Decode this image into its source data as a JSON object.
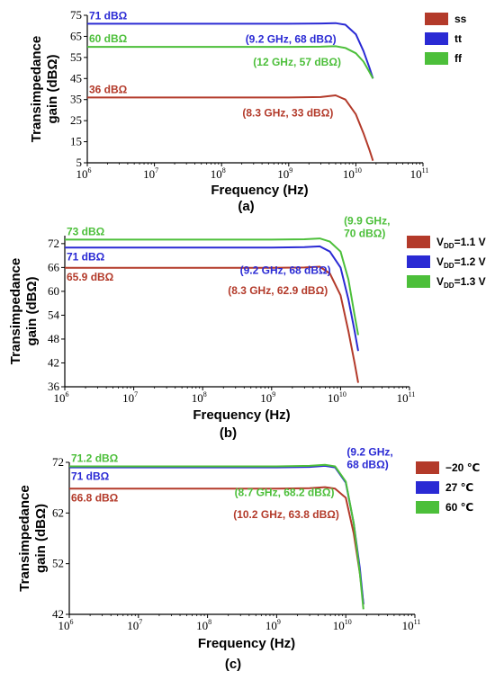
{
  "chart_data": [
    {
      "type": "line",
      "panel_label": "(a)",
      "xlabel": "Frequency (Hz)",
      "ylabel": [
        "Transimpedance",
        "gain (dBΩ)"
      ],
      "xscale": "log",
      "xlim": [
        1000000.0,
        100000000000.0
      ],
      "ylim": [
        5,
        75
      ],
      "yticks": [
        5,
        15,
        25,
        35,
        45,
        55,
        65,
        75
      ],
      "xticks": [
        1000000.0,
        10000000.0,
        100000000.0,
        1000000000.0,
        10000000000.0,
        100000000000.0
      ],
      "xtick_labels": [
        [
          "10",
          "6"
        ],
        [
          "10",
          "7"
        ],
        [
          "10",
          "8"
        ],
        [
          "10",
          "9"
        ],
        [
          "10",
          "10"
        ],
        [
          "10",
          "11"
        ]
      ],
      "grid": false,
      "legend_placement": "right",
      "series": [
        {
          "name": "ss",
          "color": "#b33a2a",
          "x": [
            1000000.0,
            10000000.0,
            100000000.0,
            1000000000.0,
            3000000000.0,
            5000000000.0,
            7000000000.0,
            10000000000.0,
            13000000000.0,
            16000000000.0,
            18000000000.0
          ],
          "y": [
            36,
            36,
            36,
            36,
            36.2,
            37,
            35,
            28,
            19,
            11,
            6
          ]
        },
        {
          "name": "tt",
          "color": "#2a2ad4",
          "x": [
            1000000.0,
            10000000.0,
            100000000.0,
            1000000000.0,
            3000000000.0,
            5000000000.0,
            7000000000.0,
            10000000000.0,
            13000000000.0,
            16000000000.0,
            18000000000.0
          ],
          "y": [
            71,
            71,
            71,
            71,
            71.1,
            71.3,
            70.5,
            66,
            58,
            50,
            45
          ]
        },
        {
          "name": "ff",
          "color": "#4cbf3a",
          "x": [
            1000000.0,
            10000000.0,
            100000000.0,
            1000000000.0,
            3000000000.0,
            5000000000.0,
            7000000000.0,
            10000000000.0,
            13000000000.0,
            16000000000.0,
            18000000000.0
          ],
          "y": [
            60,
            60,
            60,
            60,
            60.1,
            60.3,
            59.5,
            57,
            53,
            48,
            45
          ]
        }
      ],
      "annotations": [
        {
          "text": "71 dBΩ",
          "series": 1,
          "x": 1000000.0,
          "y": 71,
          "anchor": "left-above"
        },
        {
          "text": "60 dBΩ",
          "series": 2,
          "x": 1000000.0,
          "y": 60,
          "anchor": "left-above"
        },
        {
          "text": "36 dBΩ",
          "series": 0,
          "x": 1000000.0,
          "y": 36,
          "anchor": "left-above"
        },
        {
          "text": "(9.2 GHz, 68 dBΩ)",
          "series": 1,
          "x": 9200000000.0,
          "y": 68,
          "anchor": "right-of-point"
        },
        {
          "text": "(12 GHz, 57 dBΩ)",
          "series": 2,
          "x": 12000000000.0,
          "y": 57,
          "anchor": "right-of-point"
        },
        {
          "text": "(8.3 GHz, 33 dBΩ)",
          "series": 0,
          "x": 8300000000.0,
          "y": 33,
          "anchor": "right-of-point"
        }
      ]
    },
    {
      "type": "line",
      "panel_label": "(b)",
      "xlabel": "Frequency (Hz)",
      "ylabel": [
        "Transimpedance",
        "gain  (dBΩ)"
      ],
      "xscale": "log",
      "xlim": [
        1000000.0,
        100000000000.0
      ],
      "ylim": [
        36,
        74
      ],
      "yticks": [
        36,
        42,
        48,
        54,
        60,
        66,
        72
      ],
      "xticks": [
        1000000.0,
        10000000.0,
        100000000.0,
        1000000000.0,
        10000000000.0,
        100000000000.0
      ],
      "xtick_labels": [
        [
          "10",
          "6"
        ],
        [
          "10",
          "7"
        ],
        [
          "10",
          "8"
        ],
        [
          "10",
          "9"
        ],
        [
          "10",
          "10"
        ],
        [
          "10",
          "11"
        ]
      ],
      "grid": false,
      "legend_placement": "right",
      "series": [
        {
          "name": "V_DD=1.1 V",
          "name_parts": [
            "V",
            "DD",
            "=1.1 V"
          ],
          "color": "#b33a2a",
          "x": [
            1000000.0,
            10000000.0,
            100000000.0,
            1000000000.0,
            3000000000.0,
            5000000000.0,
            7000000000.0,
            10000000000.0,
            13000000000.0,
            16000000000.0,
            18000000000.0
          ],
          "y": [
            65.9,
            65.9,
            65.9,
            65.9,
            66.0,
            66.2,
            64.5,
            59,
            50,
            42,
            37
          ]
        },
        {
          "name": "V_DD=1.2 V",
          "name_parts": [
            "V",
            "DD",
            "=1.2 V"
          ],
          "color": "#2a2ad4",
          "x": [
            1000000.0,
            10000000.0,
            100000000.0,
            1000000000.0,
            3000000000.0,
            5000000000.0,
            7000000000.0,
            10000000000.0,
            13000000000.0,
            16000000000.0,
            18000000000.0
          ],
          "y": [
            71,
            71,
            71,
            71,
            71.1,
            71.3,
            70,
            66,
            58,
            50,
            45
          ]
        },
        {
          "name": "V_DD=1.3 V",
          "name_parts": [
            "V",
            "DD",
            "=1.3 V"
          ],
          "color": "#4cbf3a",
          "x": [
            1000000.0,
            10000000.0,
            100000000.0,
            1000000000.0,
            3000000000.0,
            5000000000.0,
            7000000000.0,
            10000000000.0,
            13000000000.0,
            16000000000.0,
            18000000000.0
          ],
          "y": [
            73,
            73,
            73,
            73,
            73.1,
            73.3,
            72.5,
            70,
            63,
            54,
            49
          ]
        }
      ],
      "annotations": [
        {
          "text": "73 dBΩ",
          "series": 2,
          "x": 1000000.0,
          "y": 73,
          "anchor": "left-above"
        },
        {
          "text": "71 dBΩ",
          "series": 1,
          "x": 1000000.0,
          "y": 71,
          "anchor": "left-below"
        },
        {
          "text": "65.9 dBΩ",
          "series": 0,
          "x": 1000000.0,
          "y": 65.9,
          "anchor": "left-below"
        },
        {
          "text": "(9.9 GHz,",
          "series": 2,
          "x": 9900000000.0,
          "y": 70,
          "anchor": "right-top-1"
        },
        {
          "text": "70 dBΩ)",
          "series": 2,
          "x": 9900000000.0,
          "y": 70,
          "anchor": "right-top-2"
        },
        {
          "text": "(9.2 GHz, 68 dBΩ)",
          "series": 1,
          "x": 9200000000.0,
          "y": 68,
          "anchor": "left-of-point"
        },
        {
          "text": "(8.3 GHz, 62.9 dBΩ)",
          "series": 0,
          "x": 8300000000.0,
          "y": 62.9,
          "anchor": "left-of-point"
        }
      ]
    },
    {
      "type": "line",
      "panel_label": "(c)",
      "xlabel": "Frequency (Hz)",
      "ylabel": [
        "Transimpedance",
        "gain (dBΩ)"
      ],
      "xscale": "log",
      "xlim": [
        1000000.0,
        100000000000.0
      ],
      "ylim": [
        42,
        72
      ],
      "yticks": [
        42,
        52,
        62,
        72
      ],
      "xticks": [
        1000000.0,
        10000000.0,
        100000000.0,
        1000000000.0,
        10000000000.0,
        100000000000.0
      ],
      "xtick_labels": [
        [
          "10",
          "6"
        ],
        [
          "10",
          "7"
        ],
        [
          "10",
          "8"
        ],
        [
          "10",
          "9"
        ],
        [
          "10",
          "10"
        ],
        [
          "10",
          "11"
        ]
      ],
      "grid": false,
      "legend_placement": "right",
      "series": [
        {
          "name": "−20 ℃",
          "color": "#b33a2a",
          "x": [
            1000000.0,
            10000000.0,
            100000000.0,
            1000000000.0,
            3000000000.0,
            5000000000.0,
            7000000000.0,
            10000000000.0,
            13000000000.0,
            16000000000.0,
            18000000000.0
          ],
          "y": [
            66.8,
            66.8,
            66.8,
            66.8,
            66.9,
            67.1,
            66.8,
            65,
            58,
            50,
            44
          ]
        },
        {
          "name": "27 ℃",
          "color": "#2a2ad4",
          "x": [
            1000000.0,
            10000000.0,
            100000000.0,
            1000000000.0,
            3000000000.0,
            5000000000.0,
            7000000000.0,
            10000000000.0,
            13000000000.0,
            16000000000.0,
            18000000000.0
          ],
          "y": [
            71,
            71,
            71,
            71,
            71.1,
            71.3,
            71.0,
            68,
            60,
            51,
            44
          ]
        },
        {
          "name": "60 ℃",
          "color": "#4cbf3a",
          "x": [
            1000000.0,
            10000000.0,
            100000000.0,
            1000000000.0,
            3000000000.0,
            5000000000.0,
            7000000000.0,
            10000000000.0,
            13000000000.0,
            16000000000.0,
            18000000000.0
          ],
          "y": [
            71.2,
            71.2,
            71.2,
            71.2,
            71.3,
            71.5,
            71.2,
            68.2,
            60,
            50,
            43
          ]
        }
      ],
      "annotations": [
        {
          "text": "71.2 dBΩ",
          "series": 2,
          "x": 1000000.0,
          "y": 71.2,
          "anchor": "left-above"
        },
        {
          "text": "71 dBΩ",
          "series": 1,
          "x": 1000000.0,
          "y": 71,
          "anchor": "left-below"
        },
        {
          "text": "66.8 dBΩ",
          "series": 0,
          "x": 1000000.0,
          "y": 66.8,
          "anchor": "left-below"
        },
        {
          "text": "(8.7 GHz, 68.2 dBΩ)",
          "series": 2,
          "x": 8700000000.0,
          "y": 68.2,
          "anchor": "left-of-point"
        },
        {
          "text": "(9.2 GHz,",
          "series": 1,
          "x": 9200000000.0,
          "y": 68,
          "anchor": "right-top-1"
        },
        {
          "text": "68 dBΩ)",
          "series": 1,
          "x": 9200000000.0,
          "y": 68,
          "anchor": "right-top-2"
        },
        {
          "text": "(10.2 GHz, 63.8 dBΩ)",
          "series": 0,
          "x": 10200000000.0,
          "y": 63.8,
          "anchor": "left-of-point"
        }
      ]
    }
  ]
}
